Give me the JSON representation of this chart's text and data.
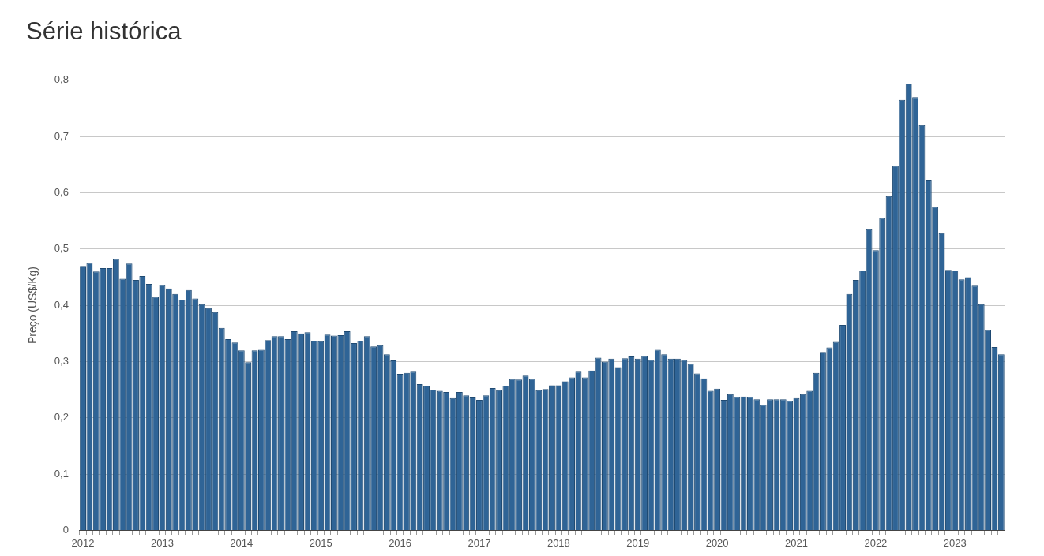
{
  "chart_data": {
    "type": "bar",
    "title": "Série histórica",
    "ylabel": "Preço (US$/Kg)",
    "categories": [
      "2012",
      null,
      null,
      null,
      null,
      null,
      null,
      null,
      null,
      null,
      null,
      null,
      "2013",
      null,
      null,
      null,
      null,
      null,
      null,
      null,
      null,
      null,
      null,
      null,
      "2014",
      null,
      null,
      null,
      null,
      null,
      null,
      null,
      null,
      null,
      null,
      null,
      "2015",
      null,
      null,
      null,
      null,
      null,
      null,
      null,
      null,
      null,
      null,
      null,
      "2016",
      null,
      null,
      null,
      null,
      null,
      null,
      null,
      null,
      null,
      null,
      null,
      "2017",
      null,
      null,
      null,
      null,
      null,
      null,
      null,
      null,
      null,
      null,
      null,
      "2018",
      null,
      null,
      null,
      null,
      null,
      null,
      null,
      null,
      null,
      null,
      null,
      "2019",
      null,
      null,
      null,
      null,
      null,
      null,
      null,
      null,
      null,
      null,
      null,
      "2020",
      null,
      null,
      null,
      null,
      null,
      null,
      null,
      null,
      null,
      null,
      null,
      "2021",
      null,
      null,
      null,
      null,
      null,
      null,
      null,
      null,
      null,
      null,
      null,
      "2022",
      null,
      null,
      null,
      null,
      null,
      null,
      null,
      null,
      null,
      null,
      null,
      "2023",
      null,
      null,
      null,
      null,
      null,
      null,
      null
    ],
    "values": [
      0.47,
      0.475,
      0.46,
      0.466,
      0.466,
      0.482,
      0.447,
      0.474,
      0.445,
      0.452,
      0.438,
      0.415,
      0.436,
      0.43,
      0.42,
      0.41,
      0.427,
      0.412,
      0.402,
      0.395,
      0.388,
      0.36,
      0.34,
      0.334,
      0.32,
      0.299,
      0.32,
      0.321,
      0.338,
      0.345,
      0.345,
      0.34,
      0.354,
      0.35,
      0.352,
      0.337,
      0.336,
      0.348,
      0.346,
      0.347,
      0.354,
      0.333,
      0.337,
      0.345,
      0.327,
      0.329,
      0.313,
      0.302,
      0.278,
      0.28,
      0.282,
      0.26,
      0.257,
      0.25,
      0.248,
      0.246,
      0.235,
      0.246,
      0.24,
      0.236,
      0.232,
      0.24,
      0.253,
      0.249,
      0.257,
      0.269,
      0.268,
      0.275,
      0.269,
      0.249,
      0.251,
      0.258,
      0.258,
      0.265,
      0.272,
      0.282,
      0.272,
      0.284,
      0.307,
      0.3,
      0.305,
      0.29,
      0.306,
      0.309,
      0.305,
      0.31,
      0.303,
      0.321,
      0.313,
      0.305,
      0.305,
      0.303,
      0.296,
      0.279,
      0.27,
      0.248,
      0.252,
      0.232,
      0.242,
      0.237,
      0.238,
      0.237,
      0.233,
      0.223,
      0.233,
      0.233,
      0.233,
      0.23,
      0.235,
      0.242,
      0.248,
      0.28,
      0.317,
      0.325,
      0.335,
      0.365,
      0.42,
      0.445,
      0.462,
      0.535,
      0.498,
      0.555,
      0.594,
      0.648,
      0.765,
      0.794,
      0.77,
      0.72,
      0.623,
      0.575,
      0.528,
      0.463,
      0.462,
      0.446,
      0.45,
      0.435,
      0.402,
      0.356,
      0.326,
      0.313
    ],
    "color": "#2f6496",
    "ylim": [
      0,
      0.8
    ],
    "yticks": [
      0,
      {
        "value": 0.1,
        "label": "0,1"
      },
      {
        "value": 0.2,
        "label": "0,2"
      },
      {
        "value": 0.3,
        "label": "0,3"
      },
      {
        "value": 0.4,
        "label": "0,4"
      },
      {
        "value": 0.5,
        "label": "0,5"
      },
      {
        "value": 0.6,
        "label": "0,6"
      },
      {
        "value": 0.7,
        "label": "0,7"
      },
      {
        "value": 0.8,
        "label": "0,8"
      }
    ],
    "grid": "y",
    "legend": false
  }
}
